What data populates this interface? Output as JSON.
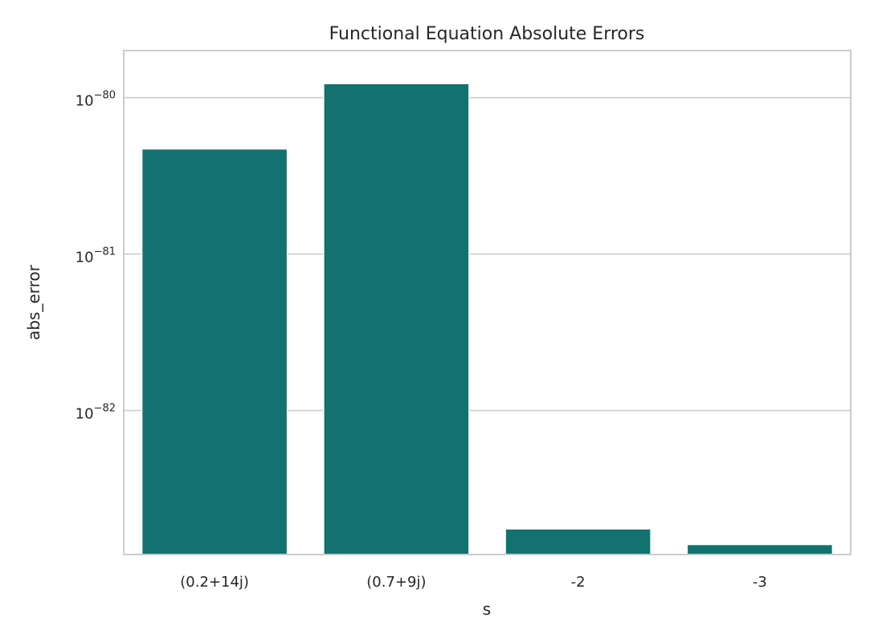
{
  "chart_data": {
    "type": "bar",
    "title": "Functional Equation Absolute Errors",
    "xlabel": "s",
    "ylabel": "abs_error",
    "yscale": "log",
    "categories": [
      "(0.2+14j)",
      "(0.7+9j)",
      "-2",
      "-3"
    ],
    "values": [
      4.7e-81,
      1.23e-80,
      1.75e-83,
      1.39e-83
    ],
    "yticks": [
      {
        "value": 1e-80,
        "base": "10",
        "exponent": "−80"
      },
      {
        "value": 1e-81,
        "base": "10",
        "exponent": "−81"
      },
      {
        "value": 1e-82,
        "base": "10",
        "exponent": "−82"
      }
    ],
    "ylim": [
      1.2e-83,
      2e-80
    ],
    "bar_color": "#11726f",
    "grid": true,
    "grid_axis": "y"
  }
}
